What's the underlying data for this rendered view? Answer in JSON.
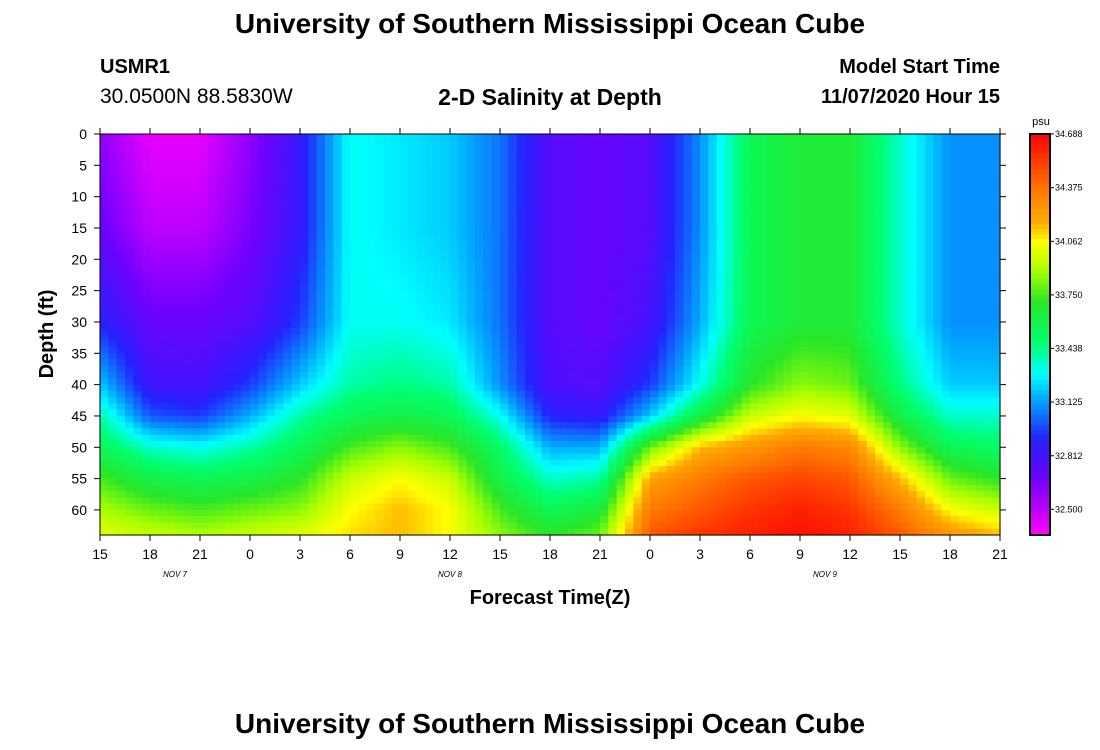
{
  "header": {
    "title": "University of Southern Mississippi Ocean Cube",
    "station_id": "USMR1",
    "station_coords": "30.0500N 88.5830W",
    "plot_title": "2-D Salinity at Depth",
    "start_label": "Model Start Time",
    "start_value": "11/07/2020 Hour 15"
  },
  "footer": {
    "title": "University of Southern Mississippi Ocean Cube"
  },
  "chart_data": {
    "type": "heatmap",
    "title": "2-D Salinity at Depth",
    "xlabel": "Forecast Time(Z)",
    "ylabel": "Depth (ft)",
    "x_range_hours": [
      0,
      54
    ],
    "x_ticks": [
      "15",
      "18",
      "21",
      "0",
      "3",
      "6",
      "9",
      "12",
      "15",
      "18",
      "21",
      "0",
      "3",
      "6",
      "9",
      "12",
      "15",
      "18",
      "21"
    ],
    "date_labels": [
      {
        "text": "NOV  7",
        "hour": 4.5
      },
      {
        "text": "NOV  8",
        "hour": 21
      },
      {
        "text": "NOV  9",
        "hour": 43.5
      }
    ],
    "y_range": [
      0,
      64
    ],
    "y_ticks": [
      0,
      5,
      10,
      15,
      20,
      25,
      30,
      35,
      40,
      45,
      50,
      55,
      60
    ],
    "colorbar": {
      "unit": "psu",
      "range": [
        32.35,
        34.688
      ],
      "labels": [
        "34.688",
        "34.375",
        "34.062",
        "33.750",
        "33.438",
        "33.125",
        "32.812",
        "32.500"
      ]
    },
    "salinity_profiles": {
      "hours": [
        0,
        3,
        6,
        9,
        12,
        15,
        18,
        21,
        24,
        27,
        30,
        33,
        36,
        39,
        42,
        45,
        48,
        51,
        54
      ],
      "layer_depths_ft": [
        0,
        15,
        30,
        40,
        45,
        50,
        55,
        60,
        64
      ],
      "values": [
        [
          32.6,
          32.7,
          32.9,
          33.2,
          33.4,
          33.55,
          33.75,
          33.9,
          34.0
        ],
        [
          32.4,
          32.5,
          32.7,
          32.82,
          33.0,
          33.35,
          33.6,
          33.8,
          33.95
        ],
        [
          32.4,
          32.5,
          32.7,
          32.8,
          32.95,
          33.3,
          33.55,
          33.75,
          33.9
        ],
        [
          32.6,
          32.65,
          32.75,
          32.95,
          33.15,
          33.4,
          33.6,
          33.8,
          33.95
        ],
        [
          32.85,
          32.85,
          32.95,
          33.2,
          33.4,
          33.55,
          33.7,
          33.85,
          34.0
        ],
        [
          33.3,
          33.3,
          33.3,
          33.4,
          33.55,
          33.75,
          33.95,
          34.05,
          34.1
        ],
        [
          33.25,
          33.25,
          33.3,
          33.45,
          33.6,
          33.85,
          34.05,
          34.15,
          34.15
        ],
        [
          33.2,
          33.2,
          33.25,
          33.4,
          33.55,
          33.75,
          33.95,
          34.05,
          34.05
        ],
        [
          33.05,
          33.05,
          33.05,
          33.1,
          33.3,
          33.5,
          33.6,
          33.75,
          33.85
        ],
        [
          32.75,
          32.75,
          32.75,
          32.78,
          32.9,
          33.15,
          33.35,
          33.55,
          33.7
        ],
        [
          32.7,
          32.7,
          32.7,
          32.75,
          32.85,
          33.15,
          33.4,
          33.65,
          33.8
        ],
        [
          32.75,
          32.75,
          32.8,
          32.95,
          33.2,
          33.8,
          34.2,
          34.35,
          34.45
        ],
        [
          33.1,
          33.1,
          33.15,
          33.3,
          33.6,
          34.15,
          34.35,
          34.45,
          34.55
        ],
        [
          33.55,
          33.55,
          33.55,
          33.7,
          33.95,
          34.25,
          34.45,
          34.55,
          34.6
        ],
        [
          33.65,
          33.65,
          33.65,
          33.85,
          34.05,
          34.35,
          34.5,
          34.6,
          34.65
        ],
        [
          33.65,
          33.65,
          33.65,
          33.8,
          34.0,
          34.3,
          34.45,
          34.55,
          34.6
        ],
        [
          33.35,
          33.35,
          33.35,
          33.45,
          33.6,
          33.85,
          34.15,
          34.35,
          34.45
        ],
        [
          33.1,
          33.1,
          33.1,
          33.2,
          33.35,
          33.55,
          33.8,
          34.05,
          34.25
        ],
        [
          33.1,
          33.1,
          33.1,
          33.2,
          33.35,
          33.5,
          33.7,
          33.95,
          34.15
        ]
      ]
    }
  }
}
